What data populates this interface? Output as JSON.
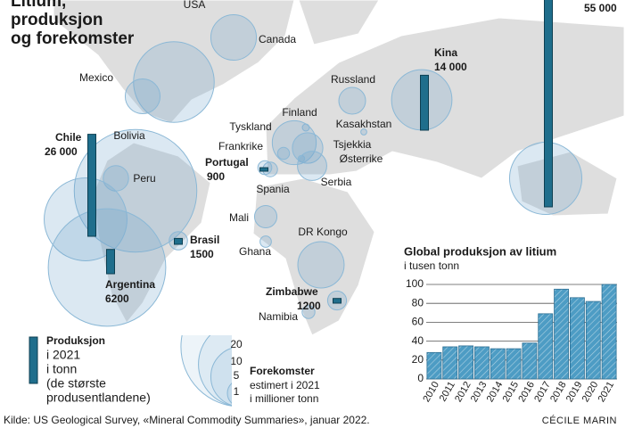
{
  "title_lines": [
    "Litium,",
    "produksjon",
    "og forekomster"
  ],
  "producers": {
    "names": [
      null,
      "Kina",
      "Chile",
      "Argentina",
      "Brasil",
      "Portugal",
      "Zimbabwe"
    ],
    "values": [
      55000,
      14000,
      26000,
      6200,
      1500,
      900,
      1200
    ],
    "value_labels": [
      "55 000",
      "14 000",
      "26 000",
      "6200",
      "1500",
      "900",
      "1200"
    ],
    "color": "#1f6e8c"
  },
  "reserves": {
    "names": [
      "USA",
      "Canada",
      "Mexico",
      "Russland",
      "Finland",
      "Kasakhstan",
      "Tyskland",
      "Frankrike",
      "Tsjekkia",
      "Østerrike",
      "Serbia",
      "Spania",
      "Bolivia",
      "Peru",
      "Mali",
      "Ghana",
      "DR Kongo",
      "Namibia",
      null,
      null,
      null,
      null,
      null,
      null,
      null
    ],
    "values": [
      9.1,
      2.9,
      1.7,
      1,
      0.07,
      0.05,
      2.7,
      0.2,
      1.3,
      0.06,
      1.2,
      0.3,
      21,
      0.9,
      0.7,
      0.18,
      3,
      0.23,
      9.6,
      19.3,
      0.47,
      0.27,
      0.5,
      5.1,
      7.3
    ]
  },
  "production_legend": {
    "title": "Produksjon",
    "lines": [
      "i 2021",
      "i tonn",
      "(de største",
      "produsentlandene)"
    ]
  },
  "reserves_legend": {
    "title": "Forekomster",
    "lines": [
      "estimert i 2021",
      "i millioner tonn"
    ],
    "sizes": [
      20,
      10,
      5,
      1
    ]
  },
  "chart_data": {
    "type": "bar",
    "title": "Global produksjon av litium",
    "subtitle": "i tusen tonn",
    "categories": [
      "2010",
      "2011",
      "2012",
      "2013",
      "2014",
      "2015",
      "2016",
      "2017",
      "2018",
      "2019",
      "2020",
      "2021"
    ],
    "values": [
      28,
      34,
      35,
      34,
      32,
      32,
      38,
      69,
      95,
      86,
      82,
      100
    ],
    "color": "#4d9cc4",
    "ylim": [
      0,
      100
    ],
    "yticks": [
      0,
      20,
      40,
      60,
      80,
      100
    ],
    "grid": true
  },
  "source": "Kilde: US Geological Survey, «Mineral Commodity Summaries», januar 2022.",
  "credit": "CÉCILE MARIN"
}
